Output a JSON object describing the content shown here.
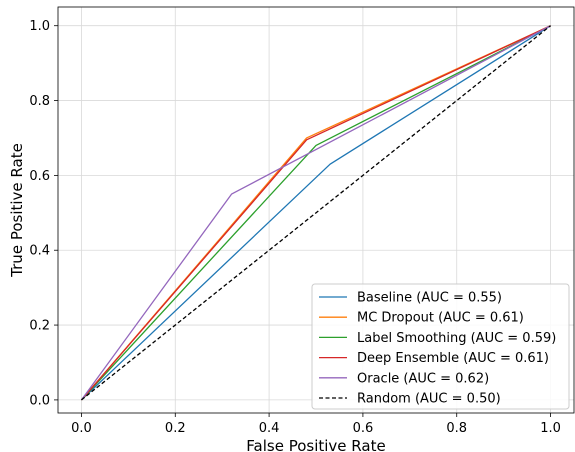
{
  "chart_data": {
    "type": "line",
    "title": "",
    "xlabel": "False Positive Rate",
    "ylabel": "True Positive Rate",
    "xlim": [
      -0.05,
      1.05
    ],
    "ylim": [
      -0.035,
      1.05
    ],
    "xticks": [
      0.0,
      0.2,
      0.4,
      0.6,
      0.8,
      1.0
    ],
    "yticks": [
      0.0,
      0.2,
      0.4,
      0.6,
      0.8,
      1.0
    ],
    "xtick_labels": [
      "0.0",
      "0.2",
      "0.4",
      "0.6",
      "0.8",
      "1.0"
    ],
    "ytick_labels": [
      "0.0",
      "0.2",
      "0.4",
      "0.6",
      "0.8",
      "1.0"
    ],
    "grid": true,
    "legend_position": "lower-right",
    "series": [
      {
        "name": "Baseline (AUC = 0.55)",
        "color": "#1f77b4",
        "dashed": false,
        "x": [
          0.0,
          0.53,
          1.0
        ],
        "y": [
          0.0,
          0.63,
          1.0
        ]
      },
      {
        "name": "MC Dropout (AUC = 0.61)",
        "color": "#ff7f0e",
        "dashed": false,
        "x": [
          0.0,
          0.48,
          1.0
        ],
        "y": [
          0.0,
          0.7,
          1.0
        ]
      },
      {
        "name": "Label Smoothing (AUC = 0.59)",
        "color": "#2ca02c",
        "dashed": false,
        "x": [
          0.0,
          0.5,
          1.0
        ],
        "y": [
          0.0,
          0.68,
          1.0
        ]
      },
      {
        "name": "Deep Ensemble (AUC = 0.61)",
        "color": "#d62728",
        "dashed": false,
        "x": [
          0.0,
          0.48,
          1.0
        ],
        "y": [
          0.0,
          0.695,
          1.0
        ]
      },
      {
        "name": "Oracle (AUC = 0.62)",
        "color": "#9467bd",
        "dashed": false,
        "x": [
          0.0,
          0.32,
          1.0
        ],
        "y": [
          0.0,
          0.55,
          1.0
        ]
      },
      {
        "name": "Random (AUC = 0.50)",
        "color": "#000000",
        "dashed": true,
        "x": [
          0.0,
          1.0
        ],
        "y": [
          0.0,
          1.0
        ]
      }
    ]
  }
}
